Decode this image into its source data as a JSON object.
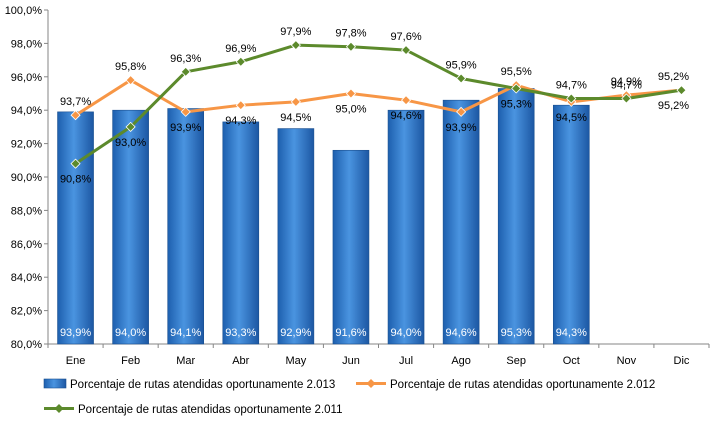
{
  "chart_data": {
    "type": "bar",
    "categories": [
      "Ene",
      "Feb",
      "Mar",
      "Abr",
      "May",
      "Jun",
      "Jul",
      "Ago",
      "Sep",
      "Oct",
      "Nov",
      "Dic"
    ],
    "ylim": [
      80,
      100
    ],
    "y_step": 2,
    "y_tick_format": "decimal-comma-percent",
    "grid": false,
    "legend_position": "bottom",
    "series": [
      {
        "name": "Porcentaje de rutas atendidas oportunamente 2.013",
        "type": "bar",
        "color": "#3f84d1",
        "values": [
          93.9,
          94.0,
          94.1,
          93.3,
          92.9,
          91.6,
          94.0,
          94.6,
          95.3,
          94.3,
          null,
          null
        ],
        "labels": [
          "93,9%",
          "94,0%",
          "94,1%",
          "93,3%",
          "92,9%",
          "91,6%",
          "94,0%",
          "94,6%",
          "95,3%",
          "94,3%",
          "",
          ""
        ]
      },
      {
        "name": "Porcentaje de rutas atendidas oportunamente 2.012",
        "type": "line",
        "color": "#f79646",
        "values": [
          93.7,
          95.8,
          93.9,
          94.3,
          94.5,
          95.0,
          94.6,
          93.9,
          95.5,
          94.5,
          94.9,
          95.2
        ],
        "labels": [
          "93,7%",
          "95,8%",
          "93,9%",
          "94,3%",
          "94,5%",
          "95,0%",
          "94,6%",
          "93,9%",
          "95,5%",
          "94,5%",
          "94,9%",
          "95,2%"
        ]
      },
      {
        "name": "Porcentaje de rutas atendidas oportunamente 2.011",
        "type": "line",
        "color": "#5c8a2c",
        "values": [
          90.8,
          93.0,
          96.3,
          96.9,
          97.9,
          97.8,
          97.6,
          95.9,
          95.3,
          94.7,
          94.7,
          95.2
        ],
        "labels": [
          "90,8%",
          "93,0%",
          "96,3%",
          "96,9%",
          "97,9%",
          "97,8%",
          "97,6%",
          "95,9%",
          "95,3%",
          "94,7%",
          "94,7%",
          "95,2%"
        ]
      }
    ]
  }
}
